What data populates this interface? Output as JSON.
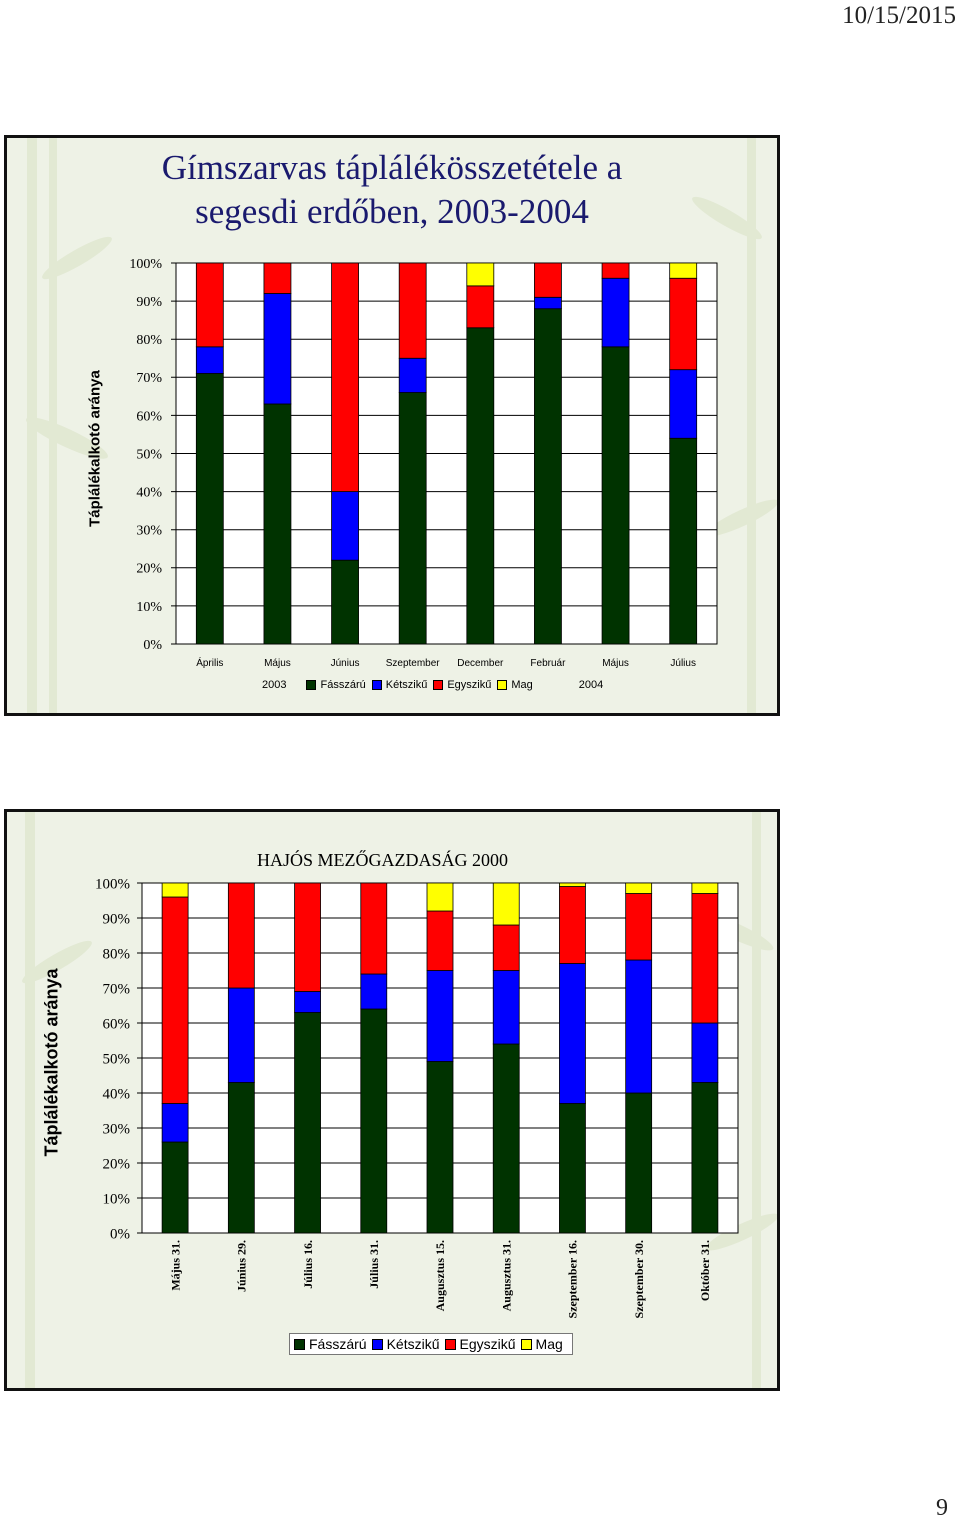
{
  "page": {
    "date": "10/15/2015",
    "page_number": "9"
  },
  "colors": {
    "Fásszárú": "#003300",
    "Kétszikű": "#0000ff",
    "Egyszikű": "#ff0000",
    "Mag": "#ffff00"
  },
  "chart1": {
    "title_line1": "Gímszarvas táplálékösszetétele a",
    "title_line2": "segesdi erdőben, 2003-2004",
    "ylabel": "Táplálékalkotó aránya",
    "legend_year_left": "2003",
    "legend_year_right": "2004",
    "legend": [
      "Fásszárú",
      "Kétszikű",
      "Egyszikű",
      "Mag"
    ]
  },
  "chart2": {
    "title": "HAJÓS MEZŐGAZDASÁG 2000",
    "ylabel": "Táplálékalkotó aránya",
    "legend": [
      "Fásszárú",
      "Kétszikű",
      "Egyszikű",
      "Mag"
    ]
  },
  "chart_data": [
    {
      "type": "bar",
      "stacked": true,
      "percent_stacked": true,
      "title": "Gímszarvas táplálékösszetétele a segesdi erdőben, 2003-2004",
      "ylabel": "Táplálékalkotó aránya",
      "xlabel": "",
      "ylim": [
        0,
        100
      ],
      "yticks": [
        "0%",
        "10%",
        "20%",
        "30%",
        "40%",
        "50%",
        "60%",
        "70%",
        "80%",
        "90%",
        "100%"
      ],
      "categories": [
        "Április",
        "Május",
        "Június",
        "Szeptember",
        "December",
        "Február",
        "Május",
        "Július"
      ],
      "series": [
        {
          "name": "Fásszárú",
          "values": [
            71,
            63,
            22,
            66,
            83,
            88,
            78,
            54
          ]
        },
        {
          "name": "Kétszikű",
          "values": [
            7,
            29,
            18,
            9,
            0,
            3,
            18,
            18
          ]
        },
        {
          "name": "Egyszikű",
          "values": [
            22,
            8,
            60,
            25,
            11,
            9,
            4,
            24
          ]
        },
        {
          "name": "Mag",
          "values": [
            0,
            0,
            0,
            0,
            6,
            0,
            0,
            4
          ]
        }
      ],
      "grid": true,
      "legend_position": "bottom"
    },
    {
      "type": "bar",
      "stacked": true,
      "percent_stacked": true,
      "title": "HAJÓS MEZŐGAZDASÁG 2000",
      "ylabel": "Táplálékalkotó aránya",
      "xlabel": "",
      "ylim": [
        0,
        100
      ],
      "yticks": [
        "0%",
        "10%",
        "20%",
        "30%",
        "40%",
        "50%",
        "60%",
        "70%",
        "80%",
        "90%",
        "100%"
      ],
      "categories": [
        "Május 31.",
        "Június 29.",
        "Július 16.",
        "Július 31.",
        "Augusztus 15.",
        "Augusztus 31.",
        "Szeptember 16.",
        "Szeptember 30.",
        "Október 31."
      ],
      "series": [
        {
          "name": "Fásszárú",
          "values": [
            26,
            43,
            63,
            64,
            49,
            54,
            37,
            40,
            43
          ]
        },
        {
          "name": "Kétszikű",
          "values": [
            11,
            27,
            6,
            10,
            26,
            21,
            40,
            38,
            17
          ]
        },
        {
          "name": "Egyszikű",
          "values": [
            59,
            30,
            31,
            26,
            17,
            13,
            22,
            19,
            37
          ]
        },
        {
          "name": "Mag",
          "values": [
            4,
            0,
            0,
            0,
            8,
            12,
            1,
            3,
            3
          ]
        }
      ],
      "grid": true,
      "legend_position": "bottom"
    }
  ]
}
